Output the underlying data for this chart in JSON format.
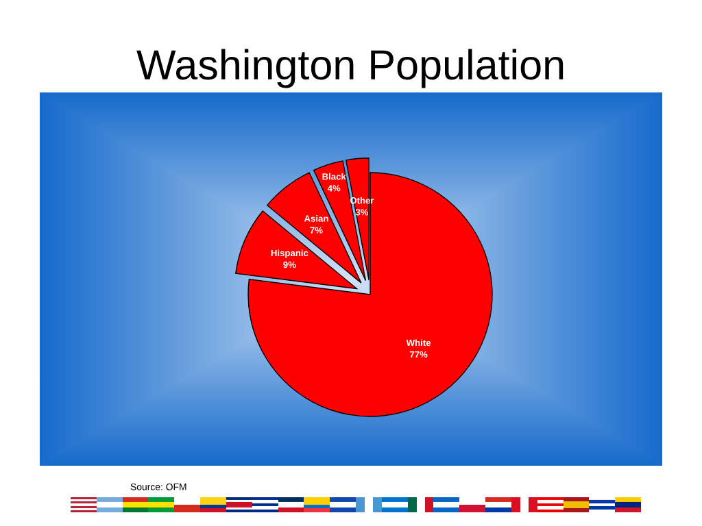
{
  "chart_data": {
    "type": "pie",
    "title": "Washington Population",
    "categories": [
      "White",
      "Hispanic",
      "Asian",
      "Black",
      "Other"
    ],
    "values": [
      77,
      9,
      7,
      4,
      3
    ],
    "colors": [
      "#ff0000",
      "#ff0000",
      "#ff0000",
      "#ff0000",
      "#ff0000"
    ],
    "value_labels": [
      "77%",
      "9%",
      "7%",
      "4%",
      "3%"
    ],
    "annotations": [
      "Source: OFM"
    ]
  }
}
